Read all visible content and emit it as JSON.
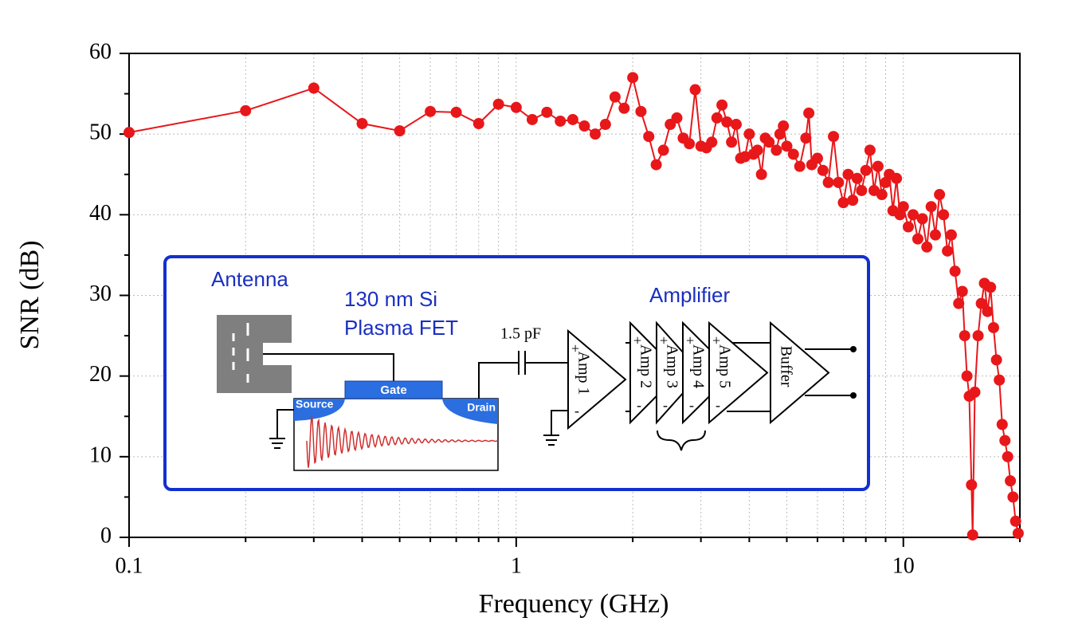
{
  "chart_data": {
    "type": "line",
    "xlabel": "Frequency (GHz)",
    "ylabel": "SNR (dB)",
    "xscale": "log",
    "xlim": [
      0.1,
      20
    ],
    "xticks": [
      0.1,
      1,
      10
    ],
    "xminorticks": [
      0.2,
      0.3,
      0.4,
      0.5,
      0.6,
      0.7,
      0.8,
      0.9,
      2,
      3,
      4,
      5,
      6,
      7,
      8,
      9,
      20
    ],
    "ylim": [
      0,
      60
    ],
    "yticks": [
      0,
      10,
      20,
      30,
      40,
      50,
      60
    ],
    "yminorticks": [
      5,
      15,
      25,
      35,
      45,
      55
    ],
    "grid": true,
    "series": [
      {
        "name": "SNR",
        "color": "#e8171a",
        "x": [
          0.1,
          0.2,
          0.3,
          0.4,
          0.5,
          0.6,
          0.7,
          0.8,
          0.9,
          1.0,
          1.1,
          1.2,
          1.3,
          1.4,
          1.5,
          1.6,
          1.7,
          1.8,
          1.9,
          2.0,
          2.1,
          2.2,
          2.3,
          2.4,
          2.5,
          2.6,
          2.7,
          2.8,
          2.9,
          3.0,
          3.1,
          3.2,
          3.3,
          3.4,
          3.5,
          3.6,
          3.7,
          3.8,
          3.9,
          4.0,
          4.1,
          4.2,
          4.3,
          4.4,
          4.5,
          4.7,
          4.8,
          4.9,
          5.0,
          5.2,
          5.4,
          5.6,
          5.7,
          5.8,
          6.0,
          6.2,
          6.4,
          6.6,
          6.8,
          7.0,
          7.2,
          7.4,
          7.6,
          7.8,
          8.0,
          8.2,
          8.4,
          8.6,
          8.8,
          9.0,
          9.2,
          9.4,
          9.6,
          9.8,
          10,
          10.3,
          10.6,
          10.9,
          11.2,
          11.5,
          11.8,
          12.1,
          12.4,
          12.7,
          13.0,
          13.3,
          13.6,
          13.9,
          14.2,
          14.4,
          14.6,
          14.8,
          15.0,
          15.1,
          15.3,
          15.6,
          15.9,
          16.2,
          16.5,
          16.8,
          17.1,
          17.4,
          17.7,
          18.0,
          18.3,
          18.6,
          18.9,
          19.2,
          19.5,
          19.8
        ],
        "values": [
          50.2,
          52.9,
          55.7,
          51.3,
          50.4,
          52.8,
          52.7,
          51.3,
          53.7,
          53.3,
          51.8,
          52.7,
          51.6,
          51.8,
          51.0,
          50.0,
          51.2,
          54.6,
          53.2,
          57.0,
          52.8,
          49.7,
          46.2,
          48.0,
          51.2,
          52.0,
          49.5,
          48.8,
          55.5,
          48.5,
          48.3,
          49.0,
          52.0,
          53.6,
          51.5,
          49.0,
          51.2,
          47.0,
          47.2,
          50.0,
          47.5,
          48.0,
          45.0,
          49.5,
          49.0,
          48.0,
          50.0,
          51.0,
          48.5,
          47.5,
          46.0,
          49.5,
          52.6,
          46.2,
          47.0,
          45.5,
          44.0,
          49.7,
          44.0,
          41.5,
          45.0,
          41.8,
          44.5,
          43.0,
          45.5,
          48.0,
          43.0,
          46.0,
          42.5,
          44.0,
          45.0,
          40.5,
          44.5,
          40.0,
          41.0,
          38.5,
          40.0,
          37.0,
          39.5,
          36.0,
          41.0,
          37.5,
          42.5,
          40.0,
          35.5,
          37.5,
          33.0,
          29.0,
          30.5,
          25.0,
          20.0,
          17.5,
          6.5,
          0.3,
          18.0,
          25.0,
          29.0,
          31.5,
          28.0,
          31.0,
          26.0,
          22.0,
          19.5,
          14.0,
          12.0,
          10.0,
          7.0,
          5.0,
          2.0,
          0.5
        ]
      }
    ],
    "inset": {
      "antenna": "Antenna",
      "fet_line1": "130 nm Si",
      "fet_line2": "Plasma FET",
      "capacitor": "1.5 pF",
      "amplifier": "Amplifier",
      "gate": "Gate",
      "source": "Source",
      "drain": "Drain",
      "stages": [
        "Amp 1",
        "Amp 2",
        "Amp 3",
        "Amp 4",
        "Amp 5",
        "Buffer"
      ],
      "plus": "+",
      "minus": "-"
    }
  }
}
